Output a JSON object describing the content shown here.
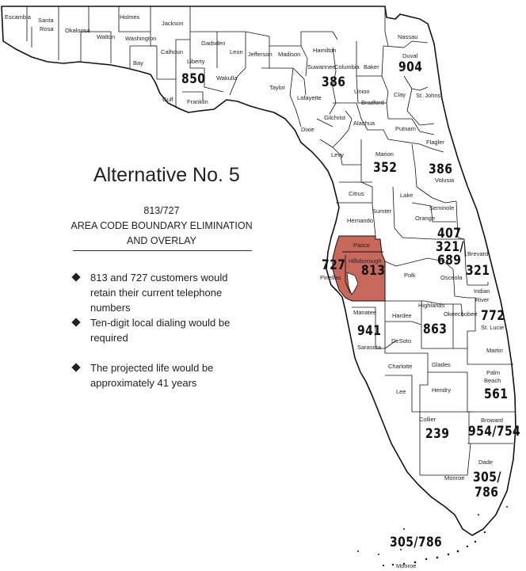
{
  "title": "Alternative No. 5",
  "subtitle_codes": "813/727",
  "subtitle_line1": "AREA CODE BOUNDARY ELIMINATION",
  "subtitle_line2": "AND OVERLAY",
  "bullets": [
    "813 and 727 customers would retain their current telephone numbers",
    "Ten-digit local dialing would be required",
    "The projected life would be approximately 41 years"
  ],
  "highlight_color": "#c8685a",
  "counties": {
    "escambia": "Escambia",
    "santa_rosa_1": "Santa",
    "santa_rosa_2": "Rosa",
    "okaloosa": "Okaloosa",
    "walton": "Walton",
    "holmes": "Holmes",
    "washington": "Washington",
    "jackson": "Jackson",
    "bay": "Bay",
    "calhoun": "Calhoun",
    "gadsden": "Gadsden",
    "liberty": "Liberty",
    "leon": "Leon",
    "jefferson": "Jefferson",
    "madison": "Madison",
    "hamilton": "Hamilton",
    "nassau": "Nassau",
    "duval": "Duval",
    "wakulla": "Wakulla",
    "gulf": "Gulf",
    "franklin": "Franklin",
    "taylor": "Taylor",
    "suwannee": "Suwannee",
    "columbia": "Columbia",
    "baker": "Baker",
    "union": "Union",
    "clay": "Clay",
    "st_johns": "St. Johns",
    "lafayette": "Lafayette",
    "bradford": "Bradford",
    "gilchrist": "Gilchrist",
    "alachua": "Alachua",
    "putnam": "Putnam",
    "dixie": "Dixie",
    "flagler": "Flagler",
    "levy": "Levy",
    "marion": "Marion",
    "volusia": "Volusia",
    "citrus": "Citrus",
    "lake": "Lake",
    "seminole": "Seminole",
    "hernando": "Hernando",
    "sumter": "Sumter",
    "orange": "Orange",
    "pasco": "Pasco",
    "hillsborough": "Hillsborough",
    "pinellas": "Pinellas",
    "polk": "Polk",
    "osceola": "Osceola",
    "brevard": "Brevard",
    "indian_river_1": "Indian",
    "indian_river_2": "River",
    "manatee": "Manatee",
    "hardee": "Hardee",
    "highlands": "Highlands",
    "okeechobee": "Okeechobee",
    "st_lucie": "St. Lucie",
    "desoto": "DeSoto",
    "sarasota": "Sarasota",
    "martin": "Martin",
    "charlotte": "Charlotte",
    "glades": "Glades",
    "palm_beach_1": "Palm",
    "palm_beach_2": "Beach",
    "lee": "Lee",
    "hendry": "Hendry",
    "collier": "Collier",
    "broward": "Broward",
    "dade": "Dade",
    "monroe": "Monroe",
    "monroe_keys": "Monroe"
  },
  "area_codes": {
    "c850": "850",
    "c904": "904",
    "c386_north": "386",
    "c352": "352",
    "c386_east": "386",
    "c407": "407",
    "c321_689": "321/",
    "c689": "689",
    "c727": "727",
    "c813": "813",
    "c321_brevard": "321",
    "c772": "772",
    "c941": "941",
    "c863": "863",
    "c561": "561",
    "c239": "239",
    "c954_754": "954/754",
    "c305_786_a": "305/",
    "c305_786_b": "786",
    "c305_786_keys": "305/786"
  }
}
